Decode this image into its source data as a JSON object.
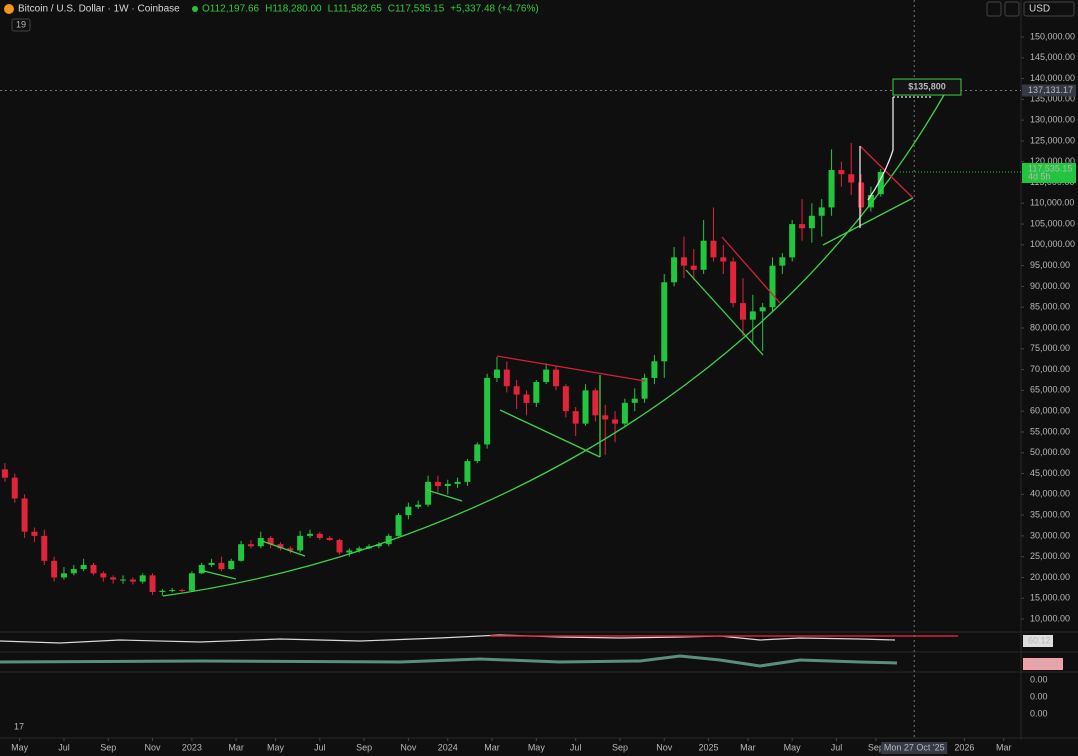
{
  "chart_data": {
    "type": "candlestick",
    "title": "Bitcoin / U.S. Dollar · 1W · Coinbase",
    "ohlc_header": [
      "O112,197.66",
      "H118,280.00",
      "L111,582.65",
      "C117,535.15",
      "+5,337.48 (+4.76%)"
    ],
    "indicator_count": "19",
    "currency": "USD",
    "up_color": "#22c53e",
    "down_color": "#e0243a",
    "grid": false,
    "ylim": [
      7360,
      158900
    ],
    "xlim": [
      -0.5,
      103.15
    ],
    "yticks": [
      {
        "value": 150000,
        "label": "150,000.00"
      },
      {
        "value": 145000,
        "label": "145,000.00"
      },
      {
        "value": 140000,
        "label": "140,000.00"
      },
      {
        "value": 135000,
        "label": "135,000.00"
      },
      {
        "value": 130000,
        "label": "130,000.00"
      },
      {
        "value": 125000,
        "label": "125,000.00"
      },
      {
        "value": 120000,
        "label": "120,000.00"
      },
      {
        "value": 115000,
        "label": "115,000.00"
      },
      {
        "value": 110000,
        "label": "110,000.00"
      },
      {
        "value": 105000,
        "label": "105,000.00"
      },
      {
        "value": 100000,
        "label": "100,000.00"
      },
      {
        "value": 95000,
        "label": "95,000.00"
      },
      {
        "value": 90000,
        "label": "90,000.00"
      },
      {
        "value": 85000,
        "label": "85,000.00"
      },
      {
        "value": 80000,
        "label": "80,000.00"
      },
      {
        "value": 75000,
        "label": "75,000.00"
      },
      {
        "value": 70000,
        "label": "70,000.00"
      },
      {
        "value": 65000,
        "label": "65,000.00"
      },
      {
        "value": 60000,
        "label": "60,000.00"
      },
      {
        "value": 55000,
        "label": "55,000.00"
      },
      {
        "value": 50000,
        "label": "50,000.00"
      },
      {
        "value": 45000,
        "label": "45,000.00"
      },
      {
        "value": 40000,
        "label": "40,000.00"
      },
      {
        "value": 35000,
        "label": "35,000.00"
      },
      {
        "value": 30000,
        "label": "30,000.00"
      },
      {
        "value": 25000,
        "label": "25,000.00"
      },
      {
        "value": 20000,
        "label": "20,000.00"
      },
      {
        "value": 15000,
        "label": "15,000.00"
      },
      {
        "value": 10000,
        "label": "10,000.00"
      }
    ],
    "xticks": [
      {
        "value": 1.5,
        "label": "May"
      },
      {
        "value": 6,
        "label": "Jul"
      },
      {
        "value": 10.5,
        "label": "Sep"
      },
      {
        "value": 15,
        "label": "Nov"
      },
      {
        "value": 19,
        "label": "2023"
      },
      {
        "value": 23.5,
        "label": "Mar"
      },
      {
        "value": 27.5,
        "label": "May"
      },
      {
        "value": 32,
        "label": "Jul"
      },
      {
        "value": 36.5,
        "label": "Sep"
      },
      {
        "value": 41,
        "label": "Nov"
      },
      {
        "value": 45,
        "label": "2024"
      },
      {
        "value": 49.5,
        "label": "Mar"
      },
      {
        "value": 54,
        "label": "May"
      },
      {
        "value": 58,
        "label": "Jul"
      },
      {
        "value": 62.5,
        "label": "Sep"
      },
      {
        "value": 67,
        "label": "Nov"
      },
      {
        "value": 71.5,
        "label": "2025"
      },
      {
        "value": 75.5,
        "label": "Mar"
      },
      {
        "value": 80,
        "label": "May"
      },
      {
        "value": 84.5,
        "label": "Jul"
      },
      {
        "value": 88.5,
        "label": "Sep"
      },
      {
        "value": 97.5,
        "label": "2026"
      },
      {
        "value": 101.5,
        "label": "Mar"
      }
    ],
    "crosshair": {
      "x": {
        "value": 92.4,
        "label": "Mon 27 Oct '25"
      },
      "y": {
        "value": 137131.17,
        "label": "137,131.17"
      }
    },
    "last_price": {
      "value": 117535.15,
      "label": "117,535.15",
      "countdown": "4d 5h"
    },
    "annotation": {
      "text": "$135,800",
      "value": 135800
    },
    "indicator_labels": {
      "rsi": "60.12",
      "macd": "-764.18",
      "zeros": [
        "0.00",
        "0.00",
        "0.00"
      ]
    },
    "candles": [
      [
        46000,
        47500,
        43000,
        44000
      ],
      [
        44000,
        45000,
        38000,
        39000
      ],
      [
        39000,
        40000,
        29500,
        31000
      ],
      [
        31000,
        32000,
        28500,
        30000
      ],
      [
        30000,
        31500,
        23000,
        24000
      ],
      [
        24000,
        25000,
        19000,
        20000
      ],
      [
        20000,
        22500,
        19500,
        21000
      ],
      [
        21000,
        23000,
        20500,
        22000
      ],
      [
        22000,
        24500,
        21500,
        23000
      ],
      [
        23000,
        23500,
        20500,
        21000
      ],
      [
        21000,
        21500,
        19000,
        20000
      ],
      [
        20000,
        20500,
        18500,
        19500
      ],
      [
        19500,
        20500,
        18500,
        19500
      ],
      [
        19500,
        20000,
        18300,
        19000
      ],
      [
        19000,
        21000,
        18500,
        20500
      ],
      [
        20500,
        21000,
        15800,
        16500
      ],
      [
        16500,
        17200,
        15600,
        16800
      ],
      [
        16800,
        17500,
        16400,
        17000
      ],
      [
        17000,
        17300,
        16500,
        16800
      ],
      [
        16800,
        21500,
        16600,
        21000
      ],
      [
        21000,
        23500,
        20800,
        23000
      ],
      [
        23000,
        24500,
        22500,
        23500
      ],
      [
        23500,
        25000,
        21500,
        22000
      ],
      [
        22000,
        24500,
        21800,
        24000
      ],
      [
        24000,
        28800,
        23800,
        28000
      ],
      [
        28000,
        29000,
        27000,
        27500
      ],
      [
        27500,
        31000,
        27000,
        29500
      ],
      [
        29500,
        30000,
        27000,
        28000
      ],
      [
        28000,
        28500,
        26500,
        27000
      ],
      [
        27000,
        27500,
        25800,
        26500
      ],
      [
        26500,
        31200,
        26000,
        30000
      ],
      [
        30000,
        31500,
        29500,
        30500
      ],
      [
        30500,
        31000,
        29000,
        29500
      ],
      [
        29500,
        30000,
        28800,
        29000
      ],
      [
        29000,
        29300,
        25500,
        26000
      ],
      [
        26000,
        27000,
        25000,
        26500
      ],
      [
        26500,
        27500,
        26000,
        27000
      ],
      [
        27000,
        28000,
        26800,
        27500
      ],
      [
        27500,
        28500,
        27000,
        28000
      ],
      [
        28000,
        30500,
        27500,
        30000
      ],
      [
        30000,
        35500,
        29800,
        35000
      ],
      [
        35000,
        38000,
        34000,
        37000
      ],
      [
        37000,
        38500,
        36500,
        37500
      ],
      [
        37500,
        44500,
        37000,
        43000
      ],
      [
        43000,
        44500,
        40500,
        42000
      ],
      [
        42000,
        43500,
        40000,
        42500
      ],
      [
        42500,
        44000,
        41500,
        43000
      ],
      [
        43000,
        48500,
        42000,
        48000
      ],
      [
        48000,
        52500,
        47500,
        52000
      ],
      [
        52000,
        69000,
        51000,
        68000
      ],
      [
        68000,
        73000,
        67000,
        70000
      ],
      [
        70000,
        72000,
        64500,
        66000
      ],
      [
        66000,
        67500,
        60500,
        64000
      ],
      [
        64000,
        65000,
        59000,
        62000
      ],
      [
        62000,
        67500,
        61000,
        67000
      ],
      [
        67000,
        71500,
        66500,
        70000
      ],
      [
        70000,
        71000,
        65000,
        66000
      ],
      [
        66000,
        66500,
        58500,
        60000
      ],
      [
        60000,
        61000,
        54000,
        57000
      ],
      [
        57000,
        66500,
        56500,
        65000
      ],
      [
        65000,
        65500,
        57500,
        59000
      ],
      [
        59000,
        61500,
        49500,
        58000
      ],
      [
        58000,
        60000,
        52500,
        57000
      ],
      [
        57000,
        63000,
        56500,
        62000
      ],
      [
        62000,
        65500,
        60000,
        63000
      ],
      [
        63000,
        69000,
        62000,
        68000
      ],
      [
        68000,
        73500,
        66500,
        72000
      ],
      [
        72000,
        93000,
        68000,
        91000
      ],
      [
        91000,
        99500,
        90000,
        97000
      ],
      [
        97000,
        102000,
        92000,
        95000
      ],
      [
        95000,
        99000,
        91500,
        94000
      ],
      [
        94000,
        106000,
        93000,
        101000
      ],
      [
        101000,
        109000,
        96000,
        97000
      ],
      [
        97000,
        100000,
        93000,
        96000
      ],
      [
        96000,
        97000,
        85000,
        86000
      ],
      [
        86000,
        92000,
        78000,
        82000
      ],
      [
        82000,
        88000,
        76000,
        84000
      ],
      [
        84000,
        86000,
        74500,
        85000
      ],
      [
        85000,
        97000,
        84000,
        95000
      ],
      [
        95000,
        98000,
        93000,
        97000
      ],
      [
        97000,
        106000,
        96000,
        105000
      ],
      [
        105000,
        111000,
        101000,
        104000
      ],
      [
        104000,
        110000,
        100500,
        107000
      ],
      [
        107000,
        111000,
        102000,
        109000
      ],
      [
        109000,
        123000,
        107000,
        118000
      ],
      [
        118000,
        120000,
        114000,
        117000
      ],
      [
        117000,
        124500,
        112000,
        115000
      ],
      [
        115000,
        117000,
        107500,
        109000
      ],
      [
        109000,
        114000,
        108000,
        112000
      ],
      [
        112197.66,
        118280,
        111582.65,
        117535.15
      ]
    ]
  }
}
